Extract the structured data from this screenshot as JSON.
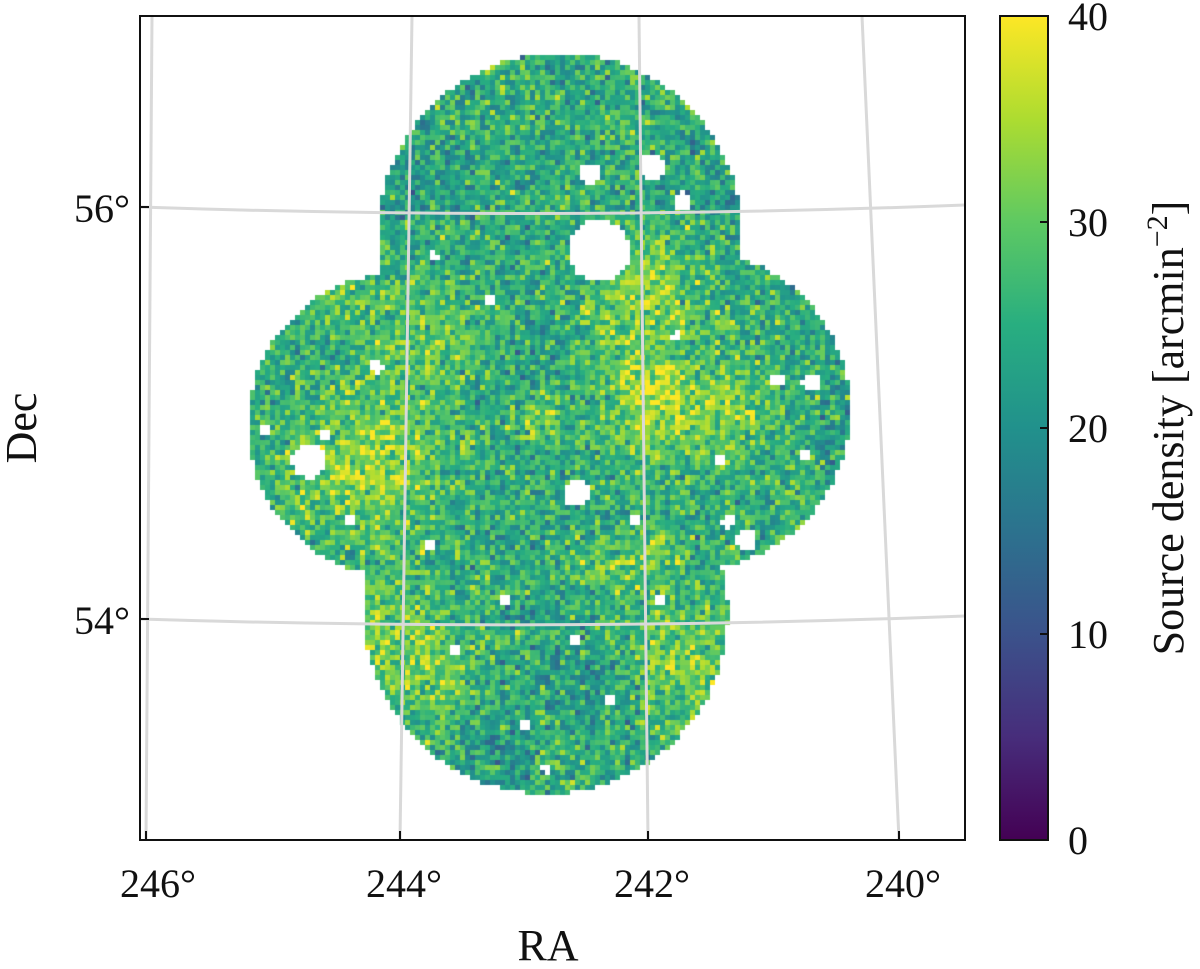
{
  "chart_data": {
    "type": "heatmap",
    "xlabel": "RA",
    "ylabel": "Dec",
    "colorbar_label": "Source density [arcmin",
    "colorbar_unit_exponent": "−2",
    "colorbar_label_close": "]",
    "colormap": "viridis",
    "colorbar_range": [
      0,
      40
    ],
    "colorbar_ticks": [
      {
        "value": 0,
        "label": "0"
      },
      {
        "value": 10,
        "label": "10"
      },
      {
        "value": 20,
        "label": "20"
      },
      {
        "value": 30,
        "label": "30"
      },
      {
        "value": 40,
        "label": "40"
      }
    ],
    "x_ticks": [
      {
        "value": 246,
        "label": "246°"
      },
      {
        "value": 244,
        "label": "244°"
      },
      {
        "value": 242,
        "label": "242°"
      },
      {
        "value": 240,
        "label": "240°"
      }
    ],
    "y_ticks": [
      {
        "value": 56,
        "label": "56°"
      },
      {
        "value": 54,
        "label": "54°"
      }
    ],
    "ra_range": [
      246.1,
      239.5
    ],
    "dec_range": [
      52.95,
      56.95
    ],
    "grid": true,
    "grid_color": "#d9d9d9",
    "survey_footprint": "four overlapping circular pointings (cross/clover shape) centred near RA 243°, Dec 54.9°",
    "typical_density": "15–35 arcmin^-2, mean about 25"
  }
}
